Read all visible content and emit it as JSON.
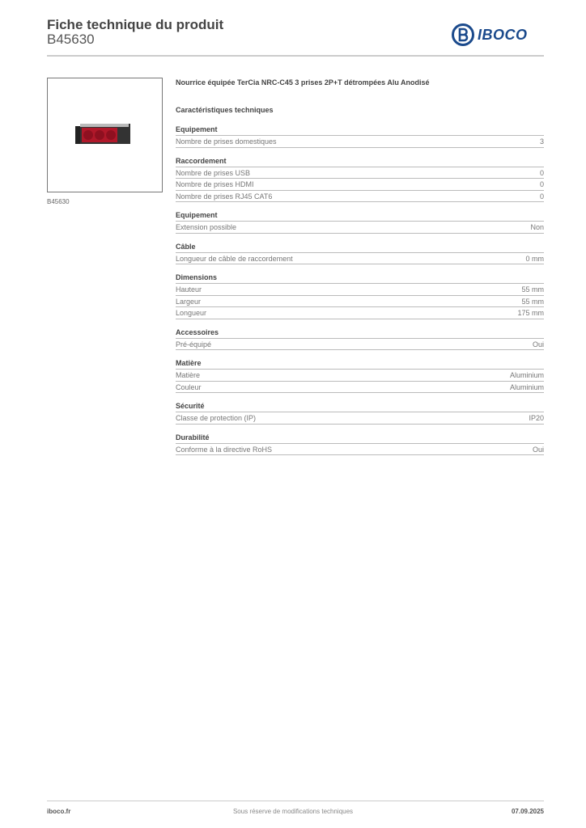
{
  "header": {
    "title": "Fiche technique du produit",
    "code": "B45630",
    "logo": "IBOCO"
  },
  "image": {
    "caption": "B45630"
  },
  "product": {
    "name": "Nourrice équipée TerCia NRC-C45 3 prises 2P+T détrompées Alu Anodisé"
  },
  "specs_title": "Caractéristiques techniques",
  "sections": [
    {
      "title": "Equipement",
      "rows": [
        {
          "label": "Nombre de prises domestiques",
          "value": "3"
        }
      ]
    },
    {
      "title": "Raccordement",
      "rows": [
        {
          "label": "Nombre de prises USB",
          "value": "0"
        },
        {
          "label": "Nombre de prises HDMI",
          "value": "0"
        },
        {
          "label": "Nombre de prises RJ45 CAT6",
          "value": "0"
        }
      ]
    },
    {
      "title": "Equipement",
      "rows": [
        {
          "label": "Extension possible",
          "value": "Non"
        }
      ]
    },
    {
      "title": "Câble",
      "rows": [
        {
          "label": "Longueur de câble de raccordement",
          "value": "0 mm"
        }
      ]
    },
    {
      "title": "Dimensions",
      "rows": [
        {
          "label": "Hauteur",
          "value": "55 mm"
        },
        {
          "label": "Largeur",
          "value": "55 mm"
        },
        {
          "label": "Longueur",
          "value": "175 mm"
        }
      ]
    },
    {
      "title": "Accessoires",
      "rows": [
        {
          "label": "Pré-équipé",
          "value": "Oui"
        }
      ]
    },
    {
      "title": "Matière",
      "rows": [
        {
          "label": "Matière",
          "value": "Aluminium"
        },
        {
          "label": "Couleur",
          "value": "Aluminium"
        }
      ]
    },
    {
      "title": "Sécurité",
      "rows": [
        {
          "label": "Classe de protection (IP)",
          "value": "IP20"
        }
      ]
    },
    {
      "title": "Durabilité",
      "rows": [
        {
          "label": "Conforme à la directive RoHS",
          "value": "Oui"
        }
      ]
    }
  ],
  "footer": {
    "site": "iboco.fr",
    "notice": "Sous réserve de modifications techniques",
    "date": "07.09.2025"
  },
  "colors": {
    "brand": "#1b4a8c",
    "socket": "#b0182a"
  }
}
